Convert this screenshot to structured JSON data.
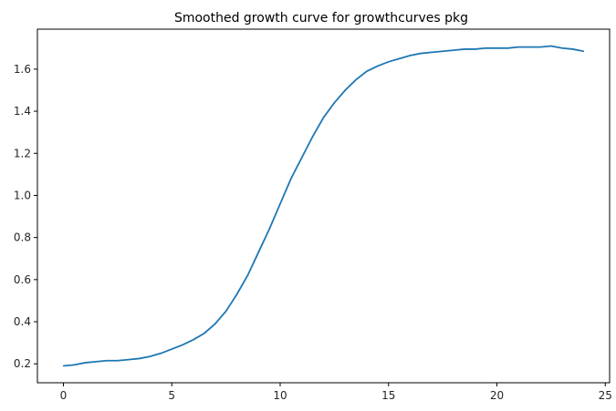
{
  "chart_data": {
    "type": "line",
    "title": "Smoothed growth curve for growthcurves pkg",
    "xlabel": "",
    "ylabel": "",
    "xlim": [
      -1.2,
      25.2
    ],
    "ylim": [
      0.11,
      1.79
    ],
    "x_ticks": [
      0,
      5,
      10,
      15,
      20,
      25
    ],
    "y_ticks": [
      0.2,
      0.4,
      0.6,
      0.8,
      1.0,
      1.2,
      1.4,
      1.6
    ],
    "x_tick_labels": [
      "0",
      "5",
      "10",
      "15",
      "20",
      "25"
    ],
    "y_tick_labels": [
      "0.2",
      "0.4",
      "0.6",
      "0.8",
      "1.0",
      "1.2",
      "1.4",
      "1.6"
    ],
    "grid": false,
    "legend": "none",
    "colors": {
      "line": "#1f77b4",
      "axes": "#000000",
      "text": "#262626"
    },
    "series": [
      {
        "x": [
          0,
          0.5,
          1,
          1.5,
          2,
          2.5,
          3,
          3.5,
          4,
          4.5,
          5,
          5.5,
          6,
          6.5,
          7,
          7.5,
          8,
          8.5,
          9,
          9.5,
          10,
          10.5,
          11,
          11.5,
          12,
          12.5,
          13,
          13.5,
          14,
          14.5,
          15,
          15.5,
          16,
          16.5,
          17,
          17.5,
          18,
          18.5,
          19,
          19.5,
          20,
          20.5,
          21,
          21.5,
          22,
          22.5,
          23,
          23.5,
          24
        ],
        "y": [
          0.19,
          0.195,
          0.205,
          0.21,
          0.215,
          0.215,
          0.22,
          0.225,
          0.235,
          0.25,
          0.27,
          0.29,
          0.315,
          0.345,
          0.39,
          0.45,
          0.53,
          0.62,
          0.73,
          0.84,
          0.96,
          1.08,
          1.18,
          1.28,
          1.37,
          1.44,
          1.5,
          1.55,
          1.59,
          1.615,
          1.635,
          1.65,
          1.665,
          1.675,
          1.68,
          1.685,
          1.69,
          1.695,
          1.695,
          1.7,
          1.7,
          1.7,
          1.705,
          1.705,
          1.705,
          1.71,
          1.7,
          1.695,
          1.685
        ]
      }
    ]
  }
}
